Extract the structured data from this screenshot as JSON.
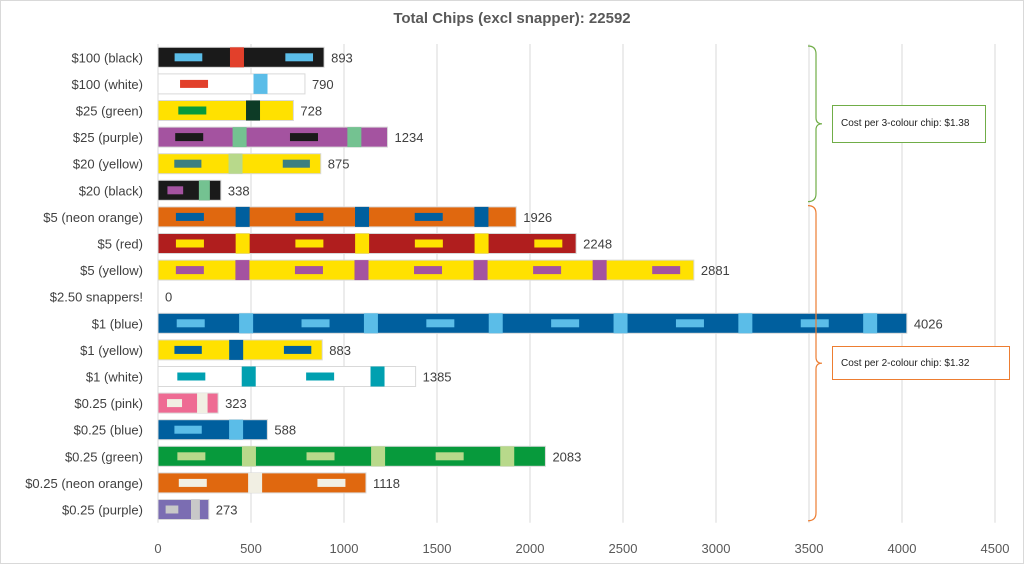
{
  "chart_data": {
    "type": "bar",
    "orientation": "horizontal",
    "title": "Total Chips (excl snapper): 22592",
    "xlabel": "",
    "ylabel": "",
    "xlim": [
      0,
      4500
    ],
    "xticks": [
      0,
      500,
      1000,
      1500,
      2000,
      2500,
      3000,
      3500,
      4000,
      4500
    ],
    "grid": true,
    "legend": "none",
    "categories": [
      "$100 (black)",
      "$100 (white)",
      "$25 (green)",
      "$25 (purple)",
      "$20 (yellow)",
      "$20 (black)",
      "$5 (neon orange)",
      "$5 (red)",
      "$5 (yellow)",
      "$2.50 snappers!",
      "$1 (blue)",
      "$1 (yellow)",
      "$1 (white)",
      "$0.25 (pink)",
      "$0.25 (blue)",
      "$0.25 (green)",
      "$0.25 (neon orange)",
      "$0.25 (purple)"
    ],
    "values": [
      893,
      790,
      728,
      1234,
      875,
      338,
      1926,
      2248,
      2881,
      0,
      4026,
      883,
      1385,
      323,
      588,
      2083,
      1118,
      273
    ],
    "bar_colors": [
      {
        "base": "#1a1a1a",
        "accents": [
          "#5bbde8",
          "#e2402b"
        ]
      },
      {
        "base": "#ffffff",
        "accents": [
          "#e2402b",
          "#5bbde8"
        ]
      },
      {
        "base": "#ffe100",
        "accents": [
          "#079a3c",
          "#0d3b26"
        ]
      },
      {
        "base": "#a453a0",
        "accents": [
          "#1a1a1a",
          "#74c291"
        ]
      },
      {
        "base": "#ffe100",
        "accents": [
          "#3c7f80",
          "#b8d98b"
        ]
      },
      {
        "base": "#1a1a1a",
        "accents": [
          "#a453a0",
          "#74c291"
        ]
      },
      {
        "base": "#e0680f",
        "accents": [
          "#005f9e"
        ]
      },
      {
        "base": "#b01e1e",
        "accents": [
          "#ffe100"
        ]
      },
      {
        "base": "#ffe100",
        "accents": [
          "#a453a0"
        ]
      },
      {
        "base": "#ffffff",
        "accents": []
      },
      {
        "base": "#005f9e",
        "accents": [
          "#5bbde8"
        ]
      },
      {
        "base": "#ffe100",
        "accents": [
          "#005f9e"
        ]
      },
      {
        "base": "#ffffff",
        "accents": [
          "#00a0b0"
        ]
      },
      {
        "base": "#ee6b93",
        "accents": [
          "#f1efe3"
        ]
      },
      {
        "base": "#005f9e",
        "accents": [
          "#5bbde8"
        ]
      },
      {
        "base": "#079a3c",
        "accents": [
          "#b8d98b"
        ]
      },
      {
        "base": "#e0680f",
        "accents": [
          "#f1efe3"
        ]
      },
      {
        "base": "#7b6db2",
        "accents": [
          "#c8c8c8"
        ]
      }
    ],
    "annotations": [
      {
        "text": "Cost per 3-colour chip: $1.38",
        "spans": [
          "$100 (black)",
          "$20 (black)"
        ],
        "color": "#70ad47"
      },
      {
        "text": "Cost per 2-colour chip: $1.32",
        "spans": [
          "$5 (neon orange)",
          "$0.25 (purple)"
        ],
        "color": "#ed7d31"
      }
    ]
  }
}
